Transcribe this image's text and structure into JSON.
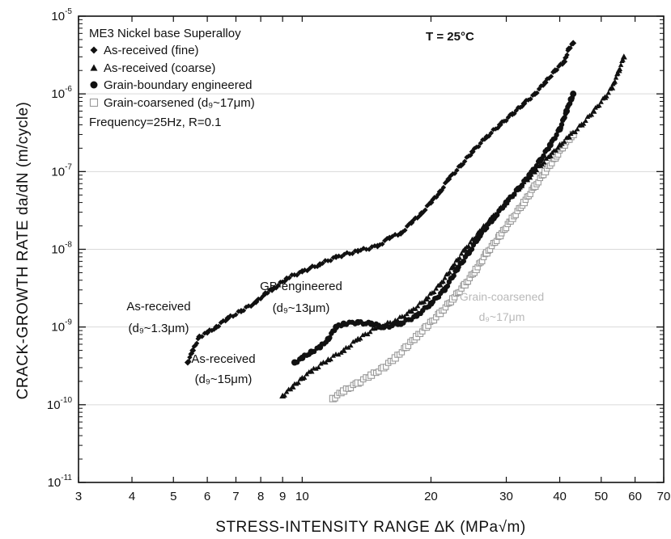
{
  "chart_data": {
    "type": "scatter",
    "xscale": "log",
    "yscale": "log",
    "xlim": [
      3,
      70
    ],
    "ylim": [
      1e-11,
      1e-05
    ],
    "xlabel": "STRESS-INTENSITY RANGE  ∆K (MPa√m)",
    "ylabel": "CRACK-GROWTH RATE da/dN (m/cycle)",
    "x_ticks": [
      {
        "value": 3,
        "label": "3"
      },
      {
        "value": 4,
        "label": "4"
      },
      {
        "value": 5,
        "label": "5"
      },
      {
        "value": 6,
        "label": "6"
      },
      {
        "value": 7,
        "label": "7"
      },
      {
        "value": 8,
        "label": "8"
      },
      {
        "value": 9,
        "label": "9"
      },
      {
        "value": 10,
        "label": "10"
      },
      {
        "value": 20,
        "label": "20"
      },
      {
        "value": 30,
        "label": "30"
      },
      {
        "value": 40,
        "label": "40"
      },
      {
        "value": 50,
        "label": "50"
      },
      {
        "value": 60,
        "label": "60"
      },
      {
        "value": 70,
        "label": "70"
      }
    ],
    "y_ticks": [
      {
        "value": 1e-11,
        "base": "10",
        "exp": "-11"
      },
      {
        "value": 1e-10,
        "base": "10",
        "exp": "-10"
      },
      {
        "value": 1e-09,
        "base": "10",
        "exp": "-9"
      },
      {
        "value": 1e-08,
        "base": "10",
        "exp": "-8"
      },
      {
        "value": 1e-07,
        "base": "10",
        "exp": "-7"
      },
      {
        "value": 1e-06,
        "base": "10",
        "exp": "-6"
      },
      {
        "value": 1e-05,
        "base": "10",
        "exp": "-5"
      }
    ],
    "legend": {
      "position": "top-left",
      "title": "ME3 Nickel base Superalloy",
      "note": "Frequency=25Hz, R=0.1",
      "entries": [
        {
          "label": "As-received  (fine)",
          "marker": "diamond",
          "color": "#111111"
        },
        {
          "label": "As-received  (coarse)",
          "marker": "triangle",
          "color": "#111111"
        },
        {
          "label": "Grain-boundary engineered",
          "marker": "circle",
          "color": "#111111"
        },
        {
          "label": "Grain-coarsened  (d₉~17μm)",
          "marker": "square",
          "color": "#9a9a9a"
        }
      ]
    },
    "condition_label": "T = 25°C",
    "annotations": [
      {
        "id": "fine",
        "lines": [
          "As-received",
          "(d₉~1.3μm)"
        ]
      },
      {
        "id": "gbe",
        "lines": [
          "GB-engineered",
          "(d₉~13μm)"
        ]
      },
      {
        "id": "coarse",
        "lines": [
          "As-received",
          "(d₉~15μm)"
        ]
      },
      {
        "id": "grain-coarsened",
        "lines": [
          "Grain-coarsened",
          "d₉~17μm"
        ]
      }
    ],
    "series": [
      {
        "name": "As-received  (fine)",
        "marker": "diamond",
        "color": "#111111",
        "points": [
          [
            5.4,
            3.5e-10
          ],
          [
            5.55,
            5e-10
          ],
          [
            5.75,
            7.5e-10
          ],
          [
            6.0,
            8.5e-10
          ],
          [
            6.3,
            1e-09
          ],
          [
            6.7,
            1.3e-09
          ],
          [
            7.2,
            1.6e-09
          ],
          [
            7.8,
            2.1e-09
          ],
          [
            8.2,
            2.7e-09
          ],
          [
            8.5,
            3e-09
          ],
          [
            9.2,
            4.2e-09
          ],
          [
            10.0,
            5.2e-09
          ],
          [
            11.0,
            6.4e-09
          ],
          [
            12.0,
            8e-09
          ],
          [
            13.5,
            9.5e-09
          ],
          [
            15.0,
            1.1e-08
          ],
          [
            16.0,
            1.4e-08
          ],
          [
            17.0,
            1.6e-08
          ],
          [
            18.0,
            2.2e-08
          ],
          [
            19.0,
            2.9e-08
          ],
          [
            20.0,
            4e-08
          ],
          [
            21.0,
            5.5e-08
          ],
          [
            22.0,
            8e-08
          ],
          [
            23.5,
            1.2e-07
          ],
          [
            25.0,
            1.8e-07
          ],
          [
            27.0,
            2.8e-07
          ],
          [
            29.0,
            4e-07
          ],
          [
            31.0,
            5.5e-07
          ],
          [
            33.0,
            7.5e-07
          ],
          [
            35.0,
            1e-06
          ],
          [
            37.0,
            1.4e-06
          ],
          [
            39.0,
            2e-06
          ],
          [
            41.0,
            2.6e-06
          ],
          [
            42.0,
            3.8e-06
          ],
          [
            43.0,
            4.5e-06
          ]
        ]
      },
      {
        "name": "As-received  (coarse)",
        "marker": "triangle",
        "color": "#111111",
        "points": [
          [
            9.0,
            1.3e-10
          ],
          [
            9.5,
            1.7e-10
          ],
          [
            10.0,
            2.2e-10
          ],
          [
            10.5,
            2.7e-10
          ],
          [
            11.5,
            3.8e-10
          ],
          [
            12.5,
            5e-10
          ],
          [
            13.5,
            7e-10
          ],
          [
            15.0,
            1e-09
          ],
          [
            16.5,
            1.2e-09
          ],
          [
            18.0,
            1.6e-09
          ],
          [
            19.5,
            2.3e-09
          ],
          [
            21.0,
            3.5e-09
          ],
          [
            22.5,
            6e-09
          ],
          [
            24.0,
            1e-08
          ],
          [
            26.0,
            1.7e-08
          ],
          [
            28.0,
            2.7e-08
          ],
          [
            30.0,
            4e-08
          ],
          [
            32.0,
            6e-08
          ],
          [
            34.0,
            8.5e-08
          ],
          [
            36.0,
            1.2e-07
          ],
          [
            38.0,
            1.6e-07
          ],
          [
            40.0,
            2.2e-07
          ],
          [
            42.0,
            2.8e-07
          ],
          [
            45.0,
            4e-07
          ],
          [
            48.0,
            6e-07
          ],
          [
            51.0,
            9e-07
          ],
          [
            53.0,
            1.2e-06
          ],
          [
            55.0,
            2e-06
          ],
          [
            56.5,
            3e-06
          ]
        ]
      },
      {
        "name": "Grain-boundary engineered",
        "marker": "circle",
        "color": "#111111",
        "points": [
          [
            9.6,
            3.5e-10
          ],
          [
            10.0,
            4e-10
          ],
          [
            10.5,
            4.8e-10
          ],
          [
            11.0,
            5.5e-10
          ],
          [
            11.5,
            7e-10
          ],
          [
            12.0,
            1e-09
          ],
          [
            12.5,
            1.1e-09
          ],
          [
            13.5,
            1.15e-09
          ],
          [
            14.5,
            1.1e-09
          ],
          [
            15.5,
            1e-09
          ],
          [
            17.0,
            1.1e-09
          ],
          [
            18.5,
            1.4e-09
          ],
          [
            20.0,
            2e-09
          ],
          [
            21.5,
            3e-09
          ],
          [
            23.0,
            5.5e-09
          ],
          [
            24.5,
            9e-09
          ],
          [
            26.0,
            1.5e-08
          ],
          [
            28.0,
            2.5e-08
          ],
          [
            30.0,
            4e-08
          ],
          [
            32.0,
            6e-08
          ],
          [
            34.0,
            9e-08
          ],
          [
            36.0,
            1.4e-07
          ],
          [
            38.0,
            2.2e-07
          ],
          [
            40.0,
            3.5e-07
          ],
          [
            41.5,
            6e-07
          ],
          [
            42.5,
            8.5e-07
          ],
          [
            43.0,
            1e-06
          ]
        ]
      },
      {
        "name": "Grain-coarsened  (d₉~17μm)",
        "marker": "square",
        "color": "#9a9a9a",
        "points": [
          [
            11.8,
            1.2e-10
          ],
          [
            12.5,
            1.5e-10
          ],
          [
            13.5,
            1.9e-10
          ],
          [
            14.5,
            2.4e-10
          ],
          [
            15.5,
            3e-10
          ],
          [
            16.5,
            4e-10
          ],
          [
            17.5,
            5.5e-10
          ],
          [
            18.5,
            7.5e-10
          ],
          [
            19.5,
            1e-09
          ],
          [
            21.0,
            1.5e-09
          ],
          [
            22.5,
            2.3e-09
          ],
          [
            24.0,
            3.5e-09
          ],
          [
            25.5,
            5.5e-09
          ],
          [
            27.0,
            9e-09
          ],
          [
            29.0,
            1.5e-08
          ],
          [
            31.0,
            2.5e-08
          ],
          [
            33.0,
            4e-08
          ],
          [
            35.0,
            6.5e-08
          ],
          [
            37.0,
            1e-07
          ],
          [
            39.0,
            1.5e-07
          ],
          [
            41.0,
            2.2e-07
          ],
          [
            43.0,
            3e-07
          ]
        ]
      }
    ]
  }
}
